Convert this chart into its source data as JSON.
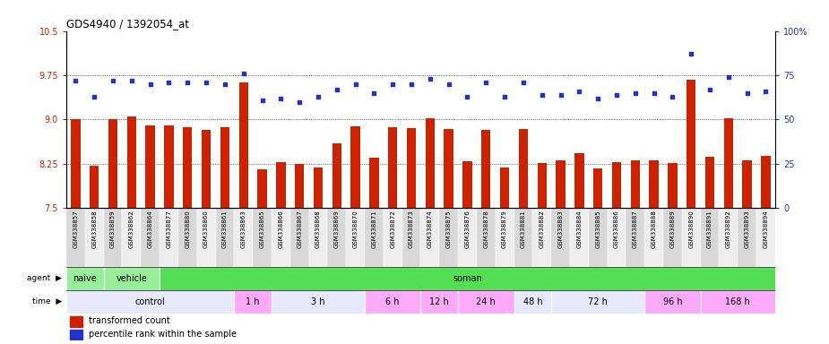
{
  "title": "GDS4940 / 1392054_at",
  "samples": [
    "GSM338857",
    "GSM338858",
    "GSM338859",
    "GSM338862",
    "GSM338864",
    "GSM338877",
    "GSM338880",
    "GSM338860",
    "GSM338861",
    "GSM338863",
    "GSM338865",
    "GSM338866",
    "GSM338867",
    "GSM338868",
    "GSM338869",
    "GSM338870",
    "GSM338871",
    "GSM338872",
    "GSM338873",
    "GSM338874",
    "GSM338875",
    "GSM338876",
    "GSM338878",
    "GSM338879",
    "GSM338881",
    "GSM338882",
    "GSM338883",
    "GSM338884",
    "GSM338885",
    "GSM338886",
    "GSM338887",
    "GSM338888",
    "GSM338889",
    "GSM338890",
    "GSM338891",
    "GSM338892",
    "GSM338893",
    "GSM338894"
  ],
  "bar_values": [
    9.0,
    8.22,
    9.0,
    9.05,
    8.9,
    8.9,
    8.87,
    8.82,
    8.87,
    9.62,
    8.15,
    8.28,
    8.25,
    8.19,
    8.6,
    8.88,
    8.35,
    8.87,
    8.85,
    9.02,
    8.83,
    8.29,
    8.82,
    8.19,
    8.83,
    8.26,
    8.3,
    8.43,
    8.17,
    8.28,
    8.3,
    8.3,
    8.26,
    9.68,
    8.37,
    9.02,
    8.3,
    8.38
  ],
  "dot_values": [
    72,
    63,
    72,
    72,
    70,
    71,
    71,
    71,
    70,
    76,
    61,
    62,
    60,
    63,
    67,
    70,
    65,
    70,
    70,
    73,
    70,
    63,
    71,
    63,
    71,
    64,
    64,
    66,
    62,
    64,
    65,
    65,
    63,
    87,
    67,
    74,
    65,
    66
  ],
  "ylim_left": [
    7.5,
    10.5
  ],
  "ylim_right": [
    0,
    100
  ],
  "yticks_left": [
    7.5,
    8.25,
    9.0,
    9.75,
    10.5
  ],
  "yticks_right": [
    0,
    25,
    50,
    75,
    100
  ],
  "bar_color": "#cc2200",
  "dot_color": "#2233cc",
  "gridline_y": [
    8.25,
    9.0,
    9.75
  ],
  "agent_segments": [
    {
      "label": "naive",
      "start": 0,
      "end": 2,
      "color": "#99ee99"
    },
    {
      "label": "vehicle",
      "start": 2,
      "end": 5,
      "color": "#99ee99"
    },
    {
      "label": "soman",
      "start": 5,
      "end": 38,
      "color": "#55dd55"
    }
  ],
  "time_segments": [
    {
      "label": "control",
      "start": 0,
      "end": 9,
      "color": "#e8e8ff"
    },
    {
      "label": "1 h",
      "start": 9,
      "end": 11,
      "color": "#ffaaff"
    },
    {
      "label": "3 h",
      "start": 11,
      "end": 16,
      "color": "#e8e8ff"
    },
    {
      "label": "6 h",
      "start": 16,
      "end": 19,
      "color": "#ffaaff"
    },
    {
      "label": "12 h",
      "start": 19,
      "end": 21,
      "color": "#ffaaff"
    },
    {
      "label": "24 h",
      "start": 21,
      "end": 24,
      "color": "#ffaaff"
    },
    {
      "label": "48 h",
      "start": 24,
      "end": 26,
      "color": "#e8e8ff"
    },
    {
      "label": "72 h",
      "start": 26,
      "end": 31,
      "color": "#e8e8ff"
    },
    {
      "label": "96 h",
      "start": 31,
      "end": 34,
      "color": "#ffaaff"
    },
    {
      "label": "168 h",
      "start": 34,
      "end": 38,
      "color": "#ffaaff"
    }
  ],
  "legend_bar_label": "transformed count",
  "legend_dot_label": "percentile rank within the sample",
  "fig_bg": "#ffffff",
  "plot_bg": "#ffffff",
  "xtick_bg_even": "#d8d8d8",
  "xtick_bg_odd": "#eeeeee"
}
